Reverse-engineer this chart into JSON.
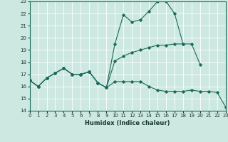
{
  "xlabel": "Humidex (Indice chaleur)",
  "xlim": [
    0,
    23
  ],
  "ylim": [
    14,
    23
  ],
  "xticks": [
    0,
    1,
    2,
    3,
    4,
    5,
    6,
    7,
    8,
    9,
    10,
    11,
    12,
    13,
    14,
    15,
    16,
    17,
    18,
    19,
    20,
    21,
    22,
    23
  ],
  "yticks": [
    14,
    15,
    16,
    17,
    18,
    19,
    20,
    21,
    22,
    23
  ],
  "bg_color": "#cce8e0",
  "grid_color": "#ffffff",
  "line_color": "#1a6b5a",
  "line1_x": [
    0,
    1,
    2,
    3,
    4,
    5,
    6,
    7,
    8,
    9,
    10,
    11,
    12,
    13,
    14,
    15,
    16,
    17,
    18,
    19,
    20,
    21,
    22,
    23
  ],
  "line1_y": [
    16.5,
    16.0,
    16.7,
    17.1,
    17.5,
    17.0,
    17.0,
    17.2,
    16.3,
    15.9,
    16.4,
    16.4,
    16.4,
    16.4,
    16.0,
    15.7,
    15.6,
    15.6,
    15.6,
    15.7,
    15.6,
    15.6,
    15.5,
    14.3
  ],
  "line2_x": [
    0,
    1,
    2,
    3,
    4,
    5,
    6,
    7,
    8,
    9,
    10,
    11,
    12,
    13,
    14,
    15,
    16,
    17,
    18
  ],
  "line2_y": [
    16.5,
    16.0,
    16.7,
    17.1,
    17.5,
    17.0,
    17.0,
    17.2,
    16.3,
    15.9,
    19.5,
    21.9,
    21.3,
    21.5,
    22.2,
    23.0,
    23.0,
    22.0,
    19.5
  ],
  "line3_x": [
    0,
    1,
    2,
    3,
    4,
    5,
    6,
    7,
    8,
    9,
    10,
    11,
    12,
    13,
    14,
    15,
    16,
    17,
    18,
    19,
    20
  ],
  "line3_y": [
    16.5,
    16.0,
    16.7,
    17.1,
    17.5,
    17.0,
    17.0,
    17.2,
    16.3,
    15.9,
    18.1,
    18.5,
    18.8,
    19.0,
    19.2,
    19.4,
    19.4,
    19.5,
    19.5,
    19.5,
    17.8
  ]
}
